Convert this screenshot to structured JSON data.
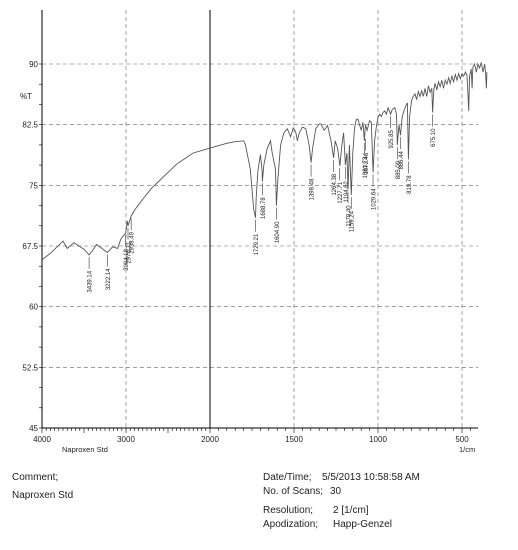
{
  "chart_data": {
    "type": "line",
    "ylabel": "%T",
    "xunit": "1/cm",
    "sample_label": "Naproxen Std",
    "xlim": [
      4000,
      350
    ],
    "ylim": [
      45,
      92
    ],
    "x_ticks": [
      4000,
      3000,
      2000,
      1500,
      1000,
      500
    ],
    "y_ticks": [
      90,
      82.5,
      75,
      67.5,
      60,
      52.5,
      45
    ],
    "y_tick_labels": [
      "90",
      "82.5",
      "75",
      "67.5",
      "60",
      "52.5",
      "45"
    ],
    "series": [
      {
        "values": [
          [
            4000,
            65.8
          ],
          [
            3900,
            66.6
          ],
          [
            3800,
            67.6
          ],
          [
            3750,
            68.1
          ],
          [
            3700,
            67.2
          ],
          [
            3620,
            67.9
          ],
          [
            3560,
            67.5
          ],
          [
            3500,
            67.1
          ],
          [
            3439,
            66.4
          ],
          [
            3400,
            66.9
          ],
          [
            3350,
            67.7
          ],
          [
            3300,
            67.3
          ],
          [
            3222,
            66.7
          ],
          [
            3160,
            67.4
          ],
          [
            3100,
            67.2
          ],
          [
            3060,
            68.4
          ],
          [
            3004,
            69.1
          ],
          [
            2985,
            70.6
          ],
          [
            2976,
            70.0
          ],
          [
            2938,
            71.2
          ],
          [
            2900,
            71.9
          ],
          [
            2850,
            72.6
          ],
          [
            2800,
            73.3
          ],
          [
            2700,
            74.6
          ],
          [
            2600,
            75.6
          ],
          [
            2500,
            76.6
          ],
          [
            2400,
            77.6
          ],
          [
            2300,
            78.3
          ],
          [
            2200,
            79.0
          ],
          [
            2100,
            79.3
          ],
          [
            2000,
            79.6
          ],
          [
            1950,
            79.9
          ],
          [
            1900,
            80.2
          ],
          [
            1850,
            80.4
          ],
          [
            1800,
            80.5
          ],
          [
            1790,
            80.1
          ],
          [
            1760,
            77.0
          ],
          [
            1740,
            72.0
          ],
          [
            1729,
            71.0
          ],
          [
            1725,
            73.5
          ],
          [
            1715,
            76.8
          ],
          [
            1700,
            78.8
          ],
          [
            1690,
            76.8
          ],
          [
            1688,
            75.5
          ],
          [
            1680,
            77.5
          ],
          [
            1660,
            79.5
          ],
          [
            1640,
            80.5
          ],
          [
            1630,
            79.0
          ],
          [
            1610,
            77.0
          ],
          [
            1605,
            72.5
          ],
          [
            1595,
            76.0
          ],
          [
            1580,
            80.0
          ],
          [
            1560,
            81.5
          ],
          [
            1540,
            82.0
          ],
          [
            1520,
            81.0
          ],
          [
            1505,
            82.1
          ],
          [
            1490,
            81.6
          ],
          [
            1480,
            80.5
          ],
          [
            1470,
            81.4
          ],
          [
            1450,
            82.2
          ],
          [
            1430,
            82.0
          ],
          [
            1410,
            80.0
          ],
          [
            1398,
            77.8
          ],
          [
            1390,
            79.5
          ],
          [
            1370,
            82.0
          ],
          [
            1350,
            82.6
          ],
          [
            1340,
            82.6
          ],
          [
            1320,
            81.8
          ],
          [
            1300,
            82.4
          ],
          [
            1280,
            80.5
          ],
          [
            1264,
            78.4
          ],
          [
            1255,
            80.5
          ],
          [
            1240,
            79.5
          ],
          [
            1227,
            77.4
          ],
          [
            1215,
            80.0
          ],
          [
            1205,
            81.5
          ],
          [
            1194,
            77.5
          ],
          [
            1185,
            79.0
          ],
          [
            1178,
            74.5
          ],
          [
            1170,
            80.0
          ],
          [
            1159,
            73.8
          ],
          [
            1150,
            79.0
          ],
          [
            1140,
            82.0
          ],
          [
            1130,
            83.1
          ],
          [
            1120,
            83.2
          ],
          [
            1110,
            82.5
          ],
          [
            1100,
            81.8
          ],
          [
            1090,
            82.8
          ],
          [
            1081,
            80.5
          ],
          [
            1075,
            82.5
          ],
          [
            1065,
            81.8
          ],
          [
            1050,
            83.0
          ],
          [
            1040,
            82.8
          ],
          [
            1029,
            76.6
          ],
          [
            1020,
            80.5
          ],
          [
            1010,
            82.2
          ],
          [
            1000,
            83.4
          ],
          [
            990,
            83.8
          ],
          [
            980,
            83.5
          ],
          [
            970,
            84.0
          ],
          [
            960,
            84.2
          ],
          [
            950,
            83.8
          ],
          [
            940,
            84.6
          ],
          [
            925,
            83.8
          ],
          [
            915,
            84.4
          ],
          [
            900,
            84.6
          ],
          [
            890,
            83.8
          ],
          [
            885,
            80.0
          ],
          [
            875,
            82.5
          ],
          [
            866,
            81.2
          ],
          [
            856,
            83.5
          ],
          [
            845,
            84.2
          ],
          [
            835,
            84.8
          ],
          [
            825,
            85.2
          ],
          [
            819,
            78.2
          ],
          [
            812,
            83.5
          ],
          [
            800,
            85.5
          ],
          [
            790,
            86.0
          ],
          [
            780,
            86.3
          ],
          [
            770,
            85.6
          ],
          [
            760,
            86.6
          ],
          [
            750,
            86.0
          ],
          [
            740,
            86.7
          ],
          [
            730,
            86.0
          ],
          [
            720,
            87.0
          ],
          [
            710,
            86.0
          ],
          [
            700,
            87.3
          ],
          [
            690,
            86.5
          ],
          [
            680,
            87.0
          ],
          [
            675,
            84.0
          ],
          [
            668,
            86.8
          ],
          [
            660,
            87.6
          ],
          [
            650,
            86.8
          ],
          [
            640,
            87.8
          ],
          [
            630,
            87.2
          ],
          [
            620,
            88.0
          ],
          [
            610,
            87.0
          ],
          [
            600,
            88.0
          ],
          [
            590,
            87.5
          ],
          [
            580,
            88.3
          ],
          [
            570,
            87.6
          ],
          [
            560,
            88.5
          ],
          [
            550,
            87.8
          ],
          [
            540,
            88.7
          ],
          [
            530,
            88.0
          ],
          [
            520,
            88.8
          ],
          [
            510,
            88.2
          ],
          [
            500,
            88.8
          ],
          [
            490,
            88.5
          ],
          [
            480,
            89.0
          ],
          [
            470,
            88.6
          ],
          [
            465,
            86.5
          ],
          [
            460,
            84.2
          ],
          [
            455,
            88.5
          ],
          [
            445,
            89.4
          ],
          [
            440,
            87.0
          ],
          [
            435,
            89.6
          ],
          [
            425,
            90.0
          ],
          [
            415,
            89.0
          ],
          [
            405,
            90.0
          ],
          [
            395,
            89.5
          ],
          [
            385,
            90.2
          ],
          [
            375,
            89.0
          ],
          [
            365,
            90.0
          ],
          [
            360,
            89.0
          ],
          [
            355,
            87.0
          ],
          [
            352,
            89.0
          ]
        ]
      }
    ],
    "peak_labels": [
      {
        "x": 3439.14,
        "y": 66.4,
        "label": "3439.14"
      },
      {
        "x": 3222.14,
        "y": 66.7,
        "label": "3222.14"
      },
      {
        "x": 3004.18,
        "y": 69.1,
        "label": "3004.18"
      },
      {
        "x": 2976.21,
        "y": 70.0,
        "label": "2976.21"
      },
      {
        "x": 2938.49,
        "y": 71.2,
        "label": "2938.49"
      },
      {
        "x": 1729.21,
        "y": 71.0,
        "label": "1729.21"
      },
      {
        "x": 1688.78,
        "y": 75.5,
        "label": "1688.78"
      },
      {
        "x": 1604.9,
        "y": 72.5,
        "label": "1604.90"
      },
      {
        "x": 1398.48,
        "y": 77.8,
        "label": "1398.48"
      },
      {
        "x": 1264.38,
        "y": 78.4,
        "label": "1264.38"
      },
      {
        "x": 1227.71,
        "y": 77.4,
        "label": "1227.71"
      },
      {
        "x": 1194.62,
        "y": 77.5,
        "label": "1194.62"
      },
      {
        "x": 1178.4,
        "y": 74.5,
        "label": "1178.40"
      },
      {
        "x": 1159.24,
        "y": 73.8,
        "label": "1159.24"
      },
      {
        "x": 1081.73,
        "y": 80.5,
        "label": "1081.73"
      },
      {
        "x": 1073.46,
        "y": 81.0,
        "label": "1073.46"
      },
      {
        "x": 1029.64,
        "y": 76.6,
        "label": "1029.64"
      },
      {
        "x": 925.85,
        "y": 83.8,
        "label": "925.85"
      },
      {
        "x": 885.09,
        "y": 80.0,
        "label": "885.09"
      },
      {
        "x": 866.44,
        "y": 81.2,
        "label": "866.44"
      },
      {
        "x": 819.78,
        "y": 78.2,
        "label": "819.78"
      },
      {
        "x": 675.1,
        "y": 84.0,
        "label": "675.10"
      }
    ],
    "grid": true
  },
  "info": {
    "comment_label": "Comment;",
    "comment_value": "Naproxen Std",
    "date_label": "Date/Time;",
    "date_value": "5/5/2013 10:58:58 AM",
    "scans_label": "No. of Scans;",
    "scans_value": "30",
    "resolution_label": "Resolution;",
    "resolution_value": "2 [1/cm]",
    "apodization_label": "Apodization;",
    "apodization_value": "Happ-Genzel"
  }
}
